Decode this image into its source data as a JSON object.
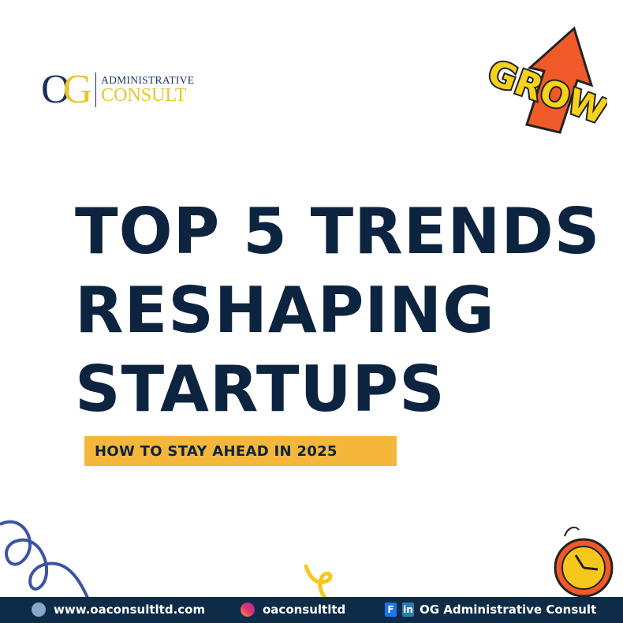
{
  "logo": {
    "monogram_o": "O",
    "monogram_g": "G",
    "line1": "ADMINISTRATIVE",
    "line2": "CONSULT"
  },
  "sticker": {
    "text": "GROW",
    "icon": "up-arrow-icon"
  },
  "headline": {
    "lines": [
      "TOP 5 TRENDS",
      "RESHAPING",
      "STARTUPS"
    ]
  },
  "tagline": "HOW TO STAY AHEAD IN 2025",
  "footer": {
    "website": {
      "icon": "globe-icon",
      "text": "www.oaconsultltd.com"
    },
    "instagram": {
      "icon": "instagram-icon",
      "text": "oaconsultltd"
    },
    "social": {
      "facebook_icon": "facebook-icon",
      "facebook_glyph": "F",
      "linkedin_icon": "linkedin-icon",
      "linkedin_glyph": "in",
      "text": "OG Administrative Consult"
    }
  },
  "colors": {
    "navy": "#0c2440",
    "yellow": "#f5b73b",
    "footer": "#0e2b47",
    "orange": "#f05a28"
  }
}
